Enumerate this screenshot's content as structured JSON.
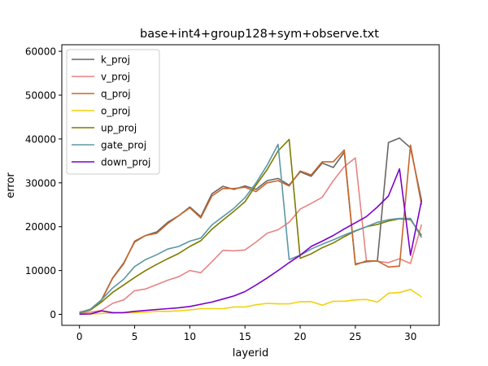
{
  "chart_data": {
    "type": "line",
    "title": "base+int4+group128+sym+observe.txt",
    "xlabel": "layerid",
    "ylabel": "error",
    "xlim": [
      -1.6,
      32.6
    ],
    "ylim": [
      -2500,
      61500
    ],
    "xticks": [
      0,
      5,
      10,
      15,
      20,
      25,
      30
    ],
    "yticks": [
      0,
      10000,
      20000,
      30000,
      40000,
      50000,
      60000
    ],
    "xtick_labels": [
      "0",
      "5",
      "10",
      "15",
      "20",
      "25",
      "30"
    ],
    "ytick_labels": [
      "0",
      "10000",
      "20000",
      "30000",
      "40000",
      "50000",
      "60000"
    ],
    "legend_position": "top-left",
    "x": [
      0,
      1,
      2,
      3,
      4,
      5,
      6,
      7,
      8,
      9,
      10,
      11,
      12,
      13,
      14,
      15,
      16,
      17,
      18,
      19,
      20,
      21,
      22,
      23,
      24,
      25,
      26,
      27,
      28,
      29,
      30,
      31
    ],
    "series": [
      {
        "name": "k_proj",
        "color": "#666666",
        "values": [
          400,
          1200,
          3300,
          8300,
          11700,
          16500,
          18000,
          18800,
          21000,
          22500,
          24500,
          22300,
          27500,
          29200,
          28500,
          29300,
          28500,
          30500,
          31000,
          29500,
          32500,
          31500,
          34500,
          33500,
          37000,
          11500,
          12000,
          12200,
          39200,
          40200,
          38000,
          26000
        ]
      },
      {
        "name": "v_proj",
        "color": "#e88484",
        "values": [
          200,
          500,
          900,
          2500,
          3300,
          5400,
          5800,
          6800,
          7800,
          8600,
          10000,
          9500,
          12000,
          14600,
          14500,
          14700,
          16500,
          18500,
          19300,
          21000,
          24000,
          25300,
          26700,
          30500,
          33700,
          35700,
          12200,
          12100,
          11800,
          12700,
          11600,
          20500
        ]
      },
      {
        "name": "q_proj",
        "color": "#c8662a",
        "values": [
          500,
          1100,
          3200,
          8200,
          11500,
          16700,
          18000,
          18500,
          20700,
          22500,
          24300,
          22000,
          27000,
          28700,
          28700,
          29000,
          28000,
          30000,
          30500,
          29300,
          32700,
          31800,
          34800,
          34800,
          37500,
          11300,
          12200,
          12200,
          10800,
          11000,
          38600,
          25000
        ]
      },
      {
        "name": "o_proj",
        "color": "#f1d20c",
        "values": [
          100,
          100,
          200,
          300,
          400,
          400,
          500,
          700,
          700,
          800,
          1000,
          1300,
          1300,
          1300,
          1700,
          1700,
          2200,
          2500,
          2400,
          2400,
          2900,
          2900,
          2100,
          3000,
          3000,
          3300,
          3400,
          2800,
          4800,
          5000,
          5700,
          4000
        ]
      },
      {
        "name": "up_proj",
        "color": "#7d7b00",
        "values": [
          300,
          1000,
          2800,
          5000,
          6700,
          8400,
          10000,
          11400,
          12700,
          13900,
          15500,
          16800,
          19400,
          21500,
          23500,
          25700,
          29500,
          33000,
          37300,
          39900,
          12800,
          13800,
          15200,
          16300,
          17700,
          19000,
          20000,
          20500,
          21300,
          21800,
          21600,
          18000
        ]
      },
      {
        "name": "gate_proj",
        "color": "#5d97a6",
        "values": [
          400,
          1200,
          3300,
          6000,
          8000,
          10900,
          12500,
          13600,
          14900,
          15500,
          16700,
          17400,
          20400,
          22300,
          24200,
          26600,
          30000,
          34000,
          38800,
          12500,
          13500,
          14900,
          16000,
          17000,
          18100,
          19100,
          20000,
          21000,
          21600,
          21900,
          21900,
          17500
        ]
      },
      {
        "name": "down_proj",
        "color": "#7d00c6",
        "values": [
          50,
          100,
          800,
          400,
          400,
          700,
          900,
          1100,
          1300,
          1500,
          1800,
          2300,
          2800,
          3500,
          4200,
          5200,
          6700,
          8300,
          10000,
          11800,
          13500,
          15500,
          16700,
          18000,
          19500,
          20900,
          22300,
          24500,
          27000,
          33200,
          13500,
          26000
        ]
      }
    ]
  }
}
